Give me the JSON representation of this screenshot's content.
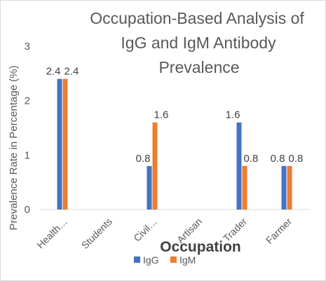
{
  "chart_data": {
    "type": "bar",
    "title_lines": [
      "Occupation-Based Analysis of",
      "IgG and IgM Antibody",
      "Prevalence"
    ],
    "title": "Occupation-Based Analysis of IgG and IgM Antibody Prevalence",
    "xlabel": "Occupation",
    "ylabel": "Prevalence Rate in Percentage (%)",
    "categories": [
      "Health…",
      "Students",
      "Civil…",
      "Artisan",
      "Trader",
      "Farmer"
    ],
    "series": [
      {
        "name": "IgG",
        "color": "#4472C4",
        "values": [
          2.4,
          0,
          0.8,
          0,
          1.6,
          0.8
        ],
        "labels": [
          "2.4",
          "",
          "0.8",
          "",
          "1.6",
          "0.8"
        ]
      },
      {
        "name": "IgM",
        "color": "#ED7D31",
        "values": [
          2.4,
          0,
          1.6,
          0,
          0.8,
          0.8
        ],
        "labels": [
          "2.4",
          "",
          "1.6",
          "",
          "0.8",
          "0.8"
        ]
      }
    ],
    "ylim": [
      0,
      3
    ],
    "yticks": [
      "0",
      "1",
      "2",
      "3"
    ],
    "grid": false,
    "legend_position": "bottom"
  }
}
